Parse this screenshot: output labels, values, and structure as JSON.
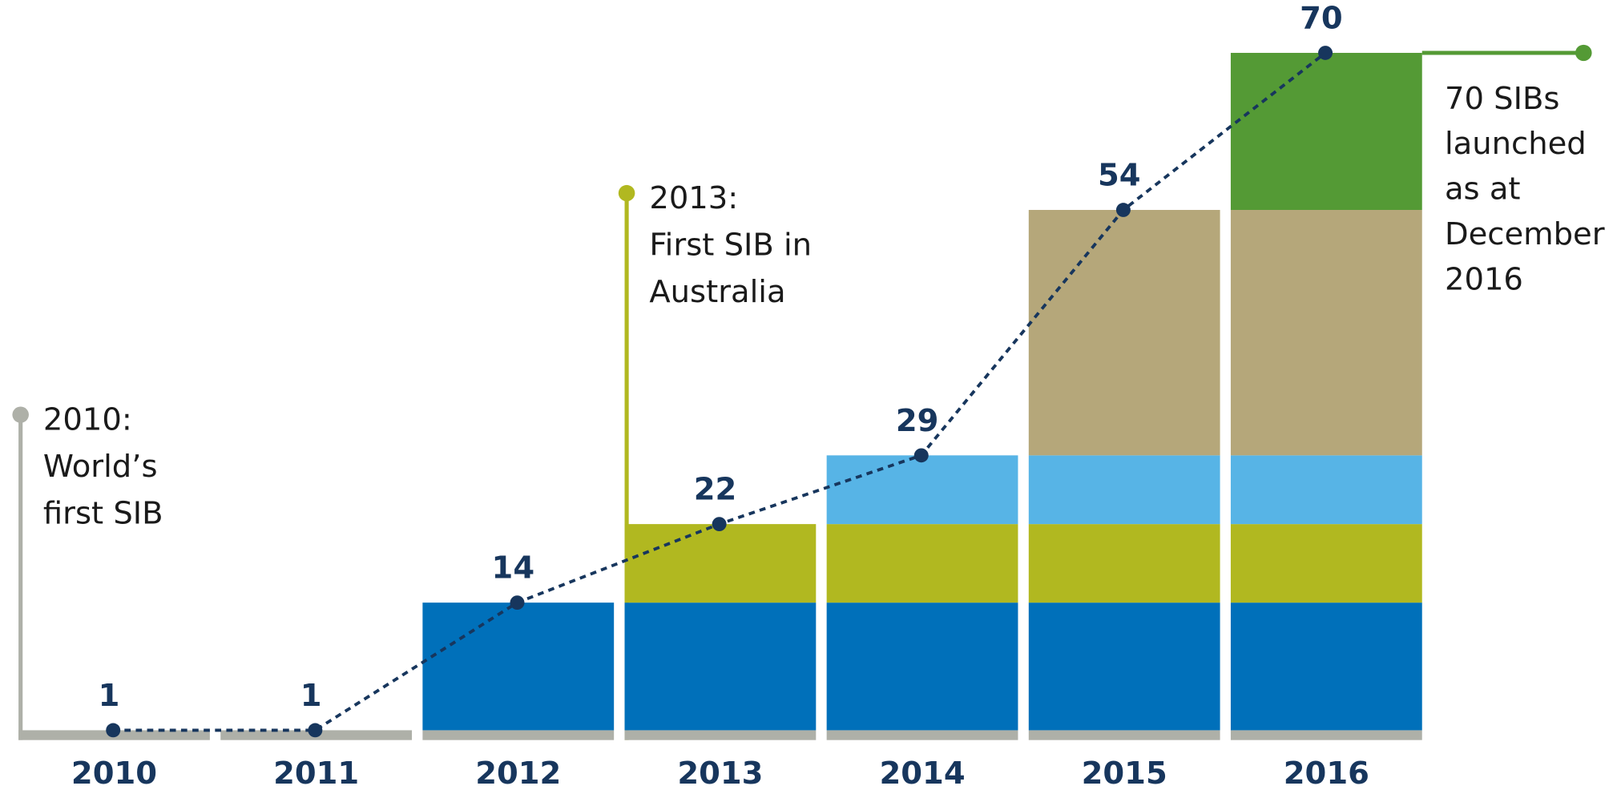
{
  "chart_data": {
    "type": "stacked_bar",
    "categories": [
      "2010",
      "2011",
      "2012",
      "2013",
      "2014",
      "2015",
      "2016"
    ],
    "series": [
      {
        "color": "#aeb0a8",
        "values": [
          1,
          1,
          1,
          1,
          1,
          1,
          1
        ]
      },
      {
        "color": "#0070ba",
        "values": [
          null,
          null,
          13,
          13,
          13,
          13,
          13
        ]
      },
      {
        "color": "#b1b820",
        "values": [
          null,
          null,
          null,
          8,
          8,
          8,
          8
        ]
      },
      {
        "color": "#57b4e6",
        "values": [
          null,
          null,
          null,
          null,
          7,
          7,
          7
        ]
      },
      {
        "color": "#b5a77a",
        "values": [
          null,
          null,
          null,
          null,
          null,
          25,
          25
        ]
      },
      {
        "color": "#549a35",
        "values": [
          null,
          null,
          null,
          null,
          null,
          null,
          16
        ]
      }
    ],
    "totals": {
      "color": "#17365d",
      "values": [
        1,
        1,
        14,
        22,
        29,
        54,
        70
      ]
    },
    "ylim": [
      0,
      70
    ],
    "annotations": [
      {
        "category": 0,
        "color": "#aeb0a8",
        "lines": [
          "2010:",
          "World’s",
          "first SIB"
        ]
      },
      {
        "category": 3,
        "color": "#b1b820",
        "lines": [
          "2013:",
          "First SIB in",
          "Australia"
        ]
      },
      {
        "category": 6,
        "color": "#549a35",
        "lines": [
          "70 SIBs",
          "launched",
          "as at",
          "December",
          "2016"
        ]
      }
    ]
  }
}
